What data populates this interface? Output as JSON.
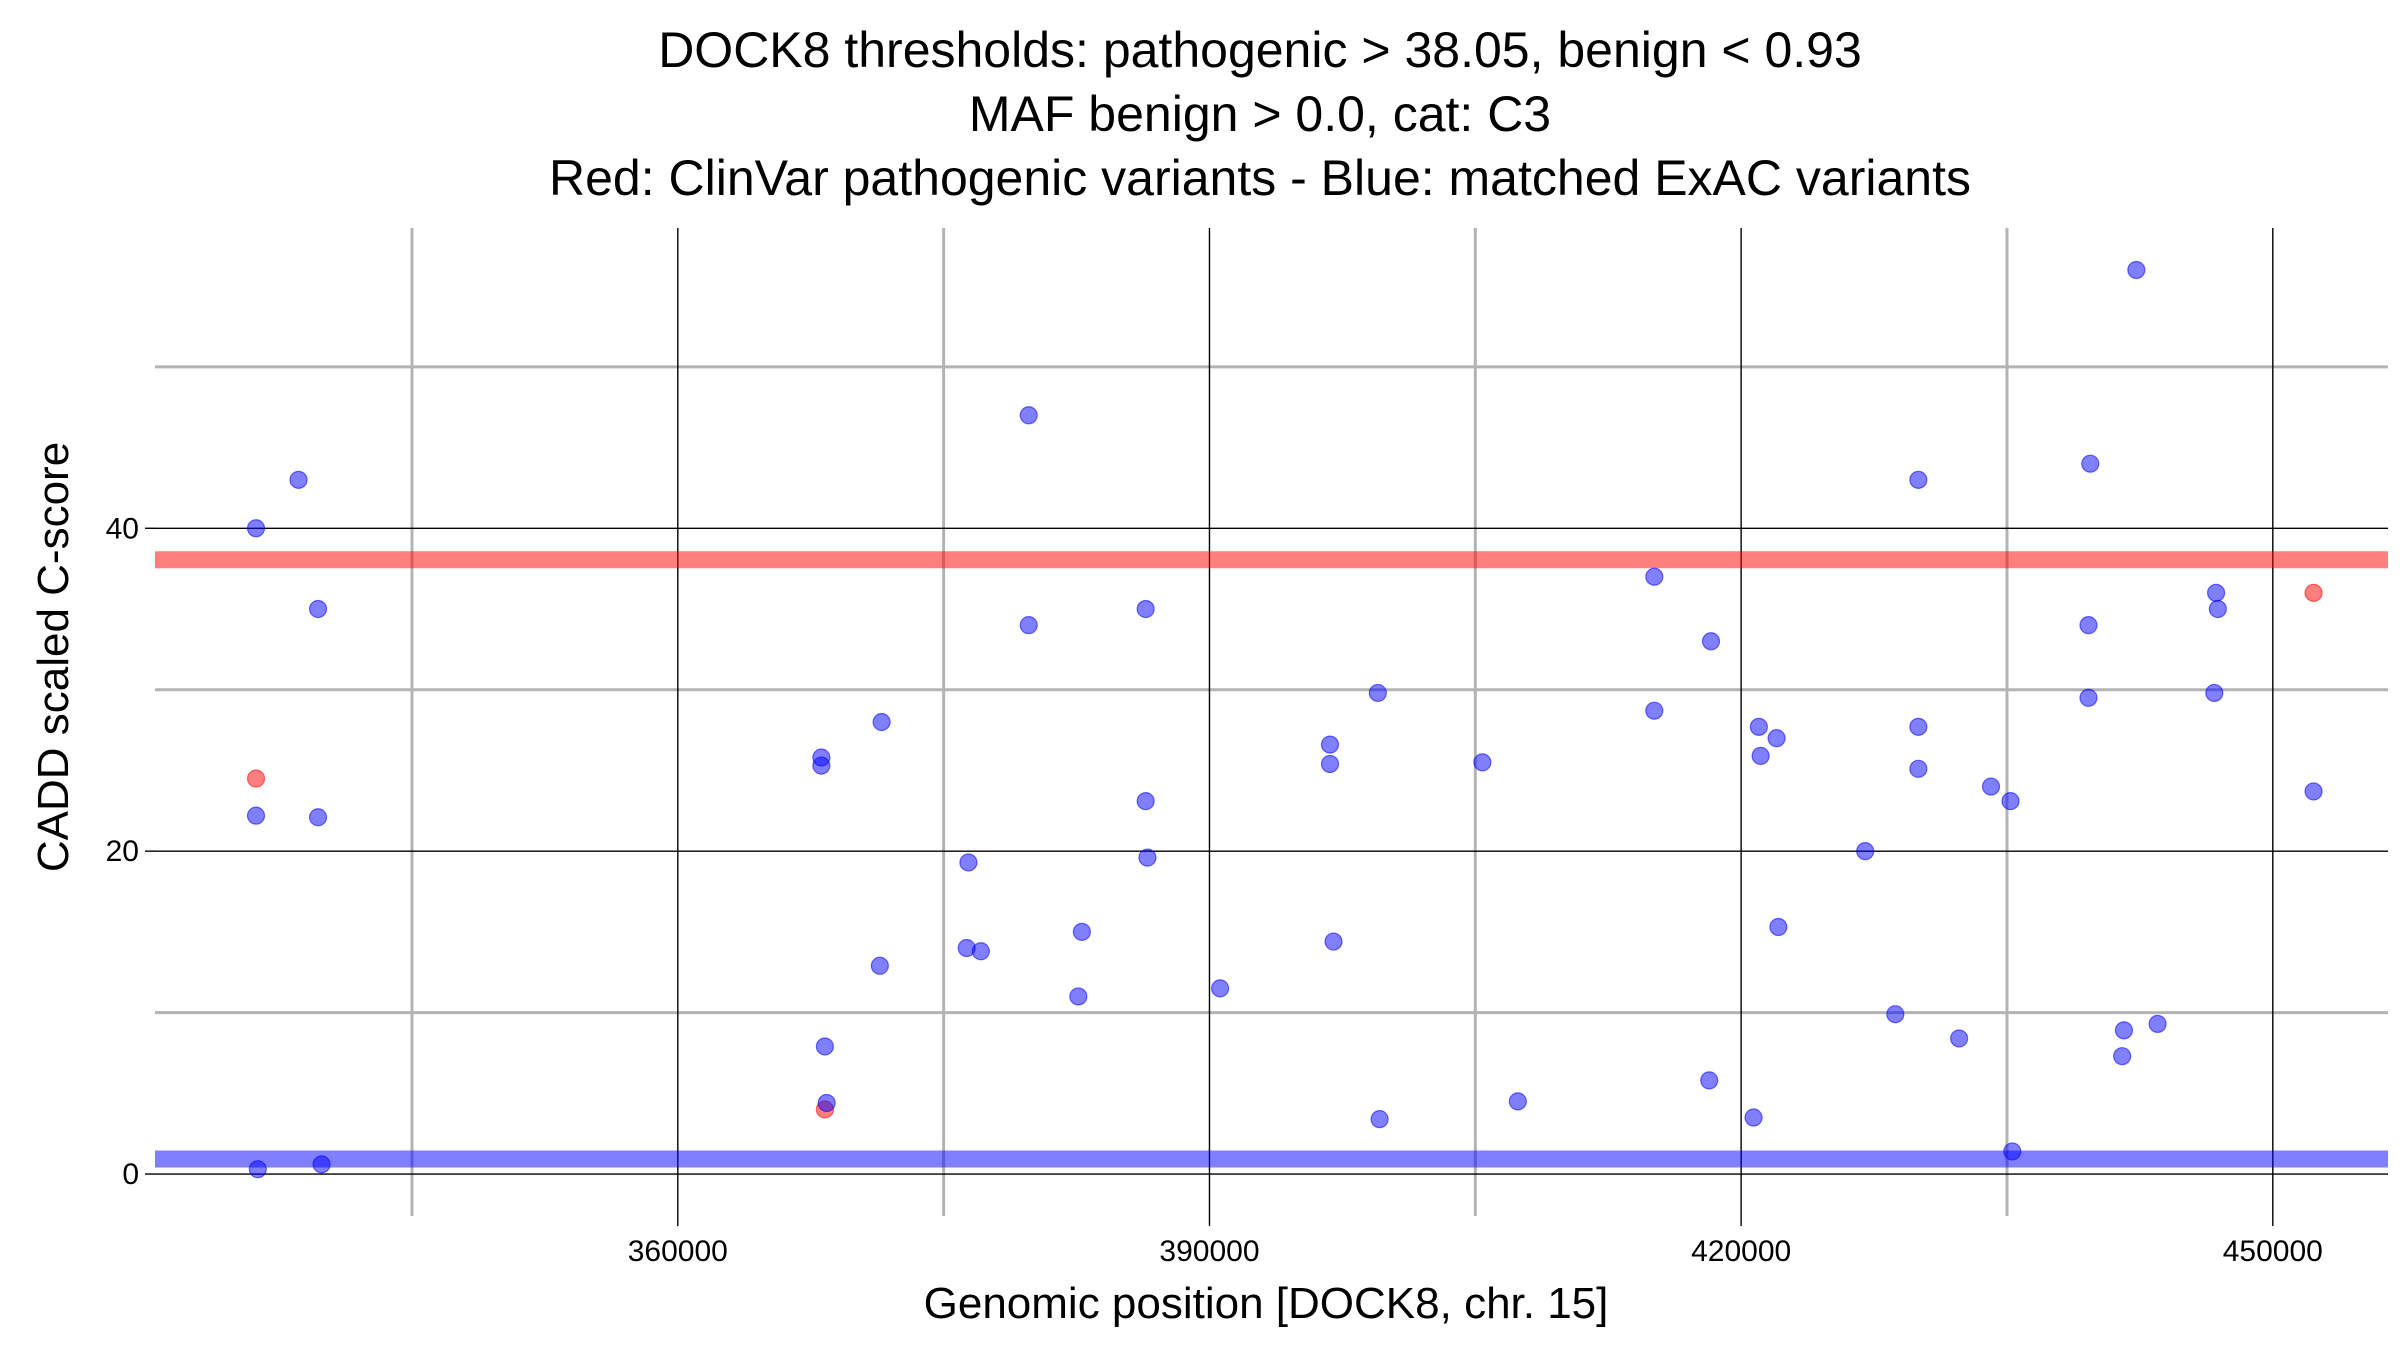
{
  "chart_data": {
    "type": "scatter",
    "title_lines": [
      "DOCK8 thresholds: pathogenic > 38.05, benign < 0.93",
      "MAF benign > 0.0, cat: C3",
      "Red: ClinVar pathogenic variants - Blue: matched ExAC variants"
    ],
    "xlabel": "Genomic position [DOCK8, chr. 15]",
    "ylabel": "CADD scaled C-score",
    "xlim": [
      330500,
      456500
    ],
    "ylim": [
      -2.6,
      58.6
    ],
    "x_major_ticks": [
      360000,
      390000,
      420000,
      450000
    ],
    "x_major_tick_labels": [
      "360000",
      "390000",
      "420000",
      "450000"
    ],
    "x_minor_gridlines": [
      345000,
      375000,
      405000,
      435000
    ],
    "y_major_ticks": [
      0,
      20,
      40
    ],
    "y_major_tick_labels": [
      "0",
      "20",
      "40"
    ],
    "y_minor_gridlines": [
      10,
      30,
      50
    ],
    "thresholds": [
      {
        "name": "pathogenic",
        "value": 38.05,
        "color": "#ff0000"
      },
      {
        "name": "benign",
        "value": 0.93,
        "color": "#0000ff"
      }
    ],
    "series": [
      {
        "name": "ClinVar pathogenic variants",
        "color": "#ff0000",
        "points": [
          [
            336200,
            24.5
          ],
          [
            368300,
            4.0
          ],
          [
            452300,
            36.0
          ]
        ]
      },
      {
        "name": "matched ExAC variants",
        "color": "#0000ff",
        "points": [
          [
            336200,
            40.0
          ],
          [
            338600,
            43.0
          ],
          [
            339700,
            35.0
          ],
          [
            336200,
            22.2
          ],
          [
            339700,
            22.1
          ],
          [
            336300,
            0.3
          ],
          [
            339900,
            0.6
          ],
          [
            368100,
            25.8
          ],
          [
            368100,
            25.3
          ],
          [
            371500,
            28.0
          ],
          [
            368300,
            7.9
          ],
          [
            368400,
            4.4
          ],
          [
            371400,
            12.9
          ],
          [
            376400,
            19.3
          ],
          [
            376300,
            14.0
          ],
          [
            377100,
            13.8
          ],
          [
            379800,
            47.0
          ],
          [
            379800,
            34.0
          ],
          [
            382800,
            15.0
          ],
          [
            382600,
            11.0
          ],
          [
            386400,
            35.0
          ],
          [
            386400,
            23.1
          ],
          [
            386500,
            19.6
          ],
          [
            390600,
            11.5
          ],
          [
            396800,
            26.6
          ],
          [
            396800,
            25.4
          ],
          [
            397000,
            14.4
          ],
          [
            399500,
            29.8
          ],
          [
            399600,
            3.4
          ],
          [
            405400,
            25.5
          ],
          [
            407400,
            4.5
          ],
          [
            415100,
            37.0
          ],
          [
            415100,
            28.7
          ],
          [
            418300,
            33.0
          ],
          [
            418200,
            5.8
          ],
          [
            421000,
            27.7
          ],
          [
            421100,
            25.9
          ],
          [
            422000,
            27.0
          ],
          [
            422100,
            15.3
          ],
          [
            420700,
            3.5
          ],
          [
            427000,
            20.0
          ],
          [
            428700,
            9.9
          ],
          [
            430000,
            43.0
          ],
          [
            430000,
            27.7
          ],
          [
            430000,
            25.1
          ],
          [
            432300,
            8.4
          ],
          [
            434100,
            24.0
          ],
          [
            435200,
            23.1
          ],
          [
            435300,
            1.4
          ],
          [
            439700,
            44.0
          ],
          [
            439600,
            34.0
          ],
          [
            439600,
            29.5
          ],
          [
            442300,
            56.0
          ],
          [
            441600,
            8.9
          ],
          [
            441500,
            7.3
          ],
          [
            443500,
            9.3
          ],
          [
            446800,
            36.0
          ],
          [
            446900,
            35.0
          ],
          [
            446700,
            29.8
          ],
          [
            452300,
            23.7
          ]
        ]
      }
    ]
  }
}
